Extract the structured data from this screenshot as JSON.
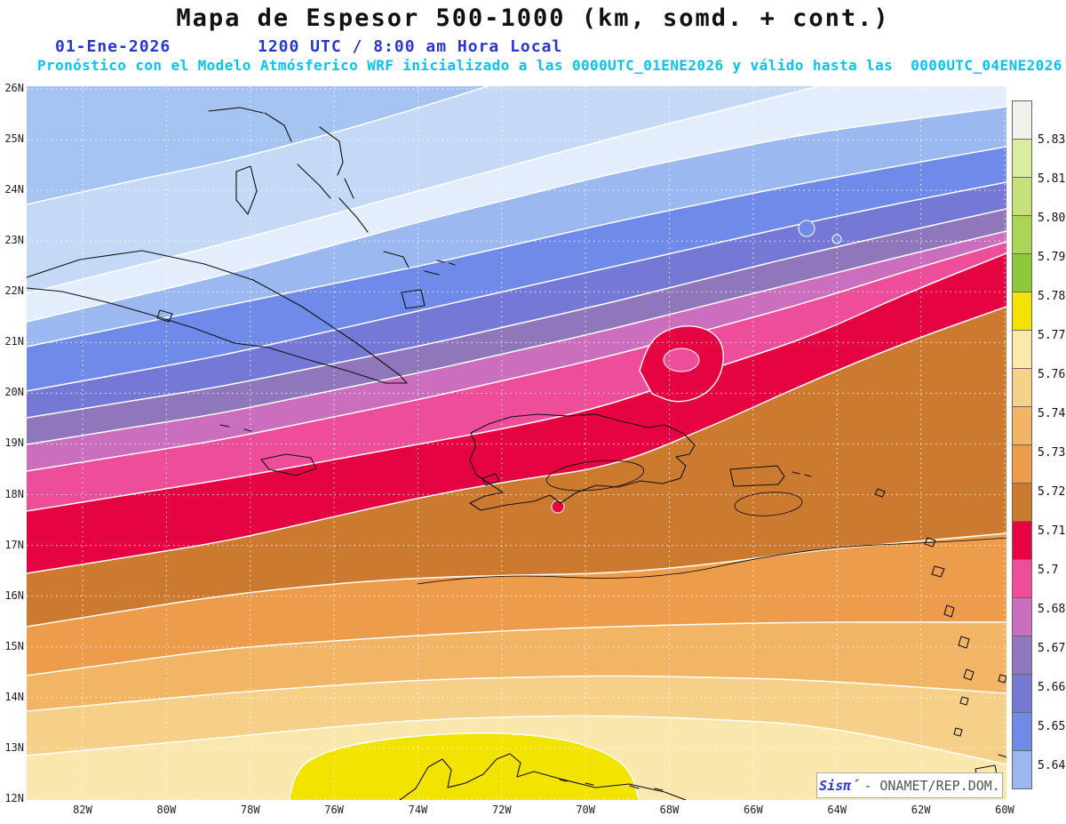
{
  "header": {
    "title": "Mapa de Espesor 500-1000 (km, somd. + cont.)",
    "date": "01-Ene-2026",
    "local_time": "1200 UTC / 8:00 am Hora Local",
    "forecast_note": "Pronóstico con el Modelo Atmósferico WRF inicializado a las 0000UTC_01ENE2026 y válido hasta las  0000UTC_04ENE2026"
  },
  "colors": {
    "title": "#111111",
    "date_line": "#2936cf",
    "forecast_line": "#07c3f2",
    "grid": "#ffffff",
    "coastline": "#111111",
    "black_contour": "#000000",
    "brand_sis": "#2936d6",
    "brand_org": "#555555"
  },
  "axes": {
    "lat_labels": [
      "26N",
      "25N",
      "24N",
      "23N",
      "22N",
      "21N",
      "20N",
      "19N",
      "18N",
      "17N",
      "16N",
      "15N",
      "14N",
      "13N",
      "12N"
    ],
    "lon_labels": [
      "82W",
      "80W",
      "78W",
      "76W",
      "74W",
      "72W",
      "70W",
      "68W",
      "66W",
      "64W",
      "62W",
      "60W"
    ]
  },
  "colorbar": {
    "labels_top_to_bottom": [
      "5.831",
      "5.819",
      "5.807",
      "5.795",
      "5.783",
      "5.772",
      "5.76",
      "5.748",
      "5.736",
      "5.724",
      "5.712",
      "5.7",
      "5.688",
      "5.676",
      "5.664",
      "5.652",
      "5.64"
    ],
    "cell_colors_top_to_bottom": [
      "#f2f1ec",
      "#daeca0",
      "#c6e17c",
      "#aad557",
      "#8fc73b",
      "#f3e300",
      "#f9e9ab",
      "#f6d189",
      "#f2b465",
      "#ec9c4b",
      "#cd7a31",
      "#e50341",
      "#ee4d9a",
      "#cc6ebe",
      "#9077bb",
      "#7678d6",
      "#6f8ae8",
      "#9cb8f0"
    ]
  },
  "map": {
    "bands_north_to_south": [
      {
        "label": "< 5.64 (a)",
        "color": "#a6c4f1"
      },
      {
        "label": "< 5.64 (b)",
        "color": "#c5d9f7"
      },
      {
        "label": "< 5.64 (c)",
        "color": "#e3edfb"
      },
      {
        "label": "< 5.64 (d)",
        "color": "#9cb8f0"
      },
      {
        "label": "5.64-5.652",
        "color": "#6f8ae8"
      },
      {
        "label": "5.652-5.664",
        "color": "#7678d6"
      },
      {
        "label": "5.664-5.676",
        "color": "#9077bb"
      },
      {
        "label": "5.676-5.688",
        "color": "#cc6ebe"
      },
      {
        "label": "5.688-5.7",
        "color": "#ee4d9a"
      },
      {
        "label": "5.7-5.712",
        "color": "#e50341"
      },
      {
        "label": "5.712-5.724",
        "color": "#cd7a31"
      },
      {
        "label": "5.724-5.736",
        "color": "#ec9c4b"
      },
      {
        "label": "5.736-5.748",
        "color": "#f2b465"
      },
      {
        "label": "5.748-5.76",
        "color": "#f6d089"
      },
      {
        "label": "5.76-5.772",
        "color": "#fae7ad"
      },
      {
        "label": "5.772-5.783",
        "color": "#f3e300"
      }
    ]
  },
  "branding": {
    "left": "Sisπ́",
    "right": "- ONAMET/REP.DOM."
  },
  "chart_data": {
    "type": "heatmap",
    "title": "Mapa de Espesor 500-1000 (km, somd. + cont.)",
    "variable": "Espesor 500-1000 hPa (km), sombreado + contornos",
    "model": "WRF",
    "valid": "01-Ene-2026 1200 UTC / 8:00 am Hora Local",
    "lat_range": [
      "12N",
      "26N"
    ],
    "lon_range": [
      "82W",
      "60W"
    ],
    "contour_levels": [
      5.64,
      5.652,
      5.664,
      5.676,
      5.688,
      5.7,
      5.712,
      5.724,
      5.736,
      5.748,
      5.76,
      5.772,
      5.783,
      5.795,
      5.807,
      5.819,
      5.831
    ],
    "pattern": "espesor aumenta de norte (≈5.63 km, azules) a sur (≈5.78 km, amarillo); bandas diagonales orientadas SW-NE sobre el Caribe"
  }
}
